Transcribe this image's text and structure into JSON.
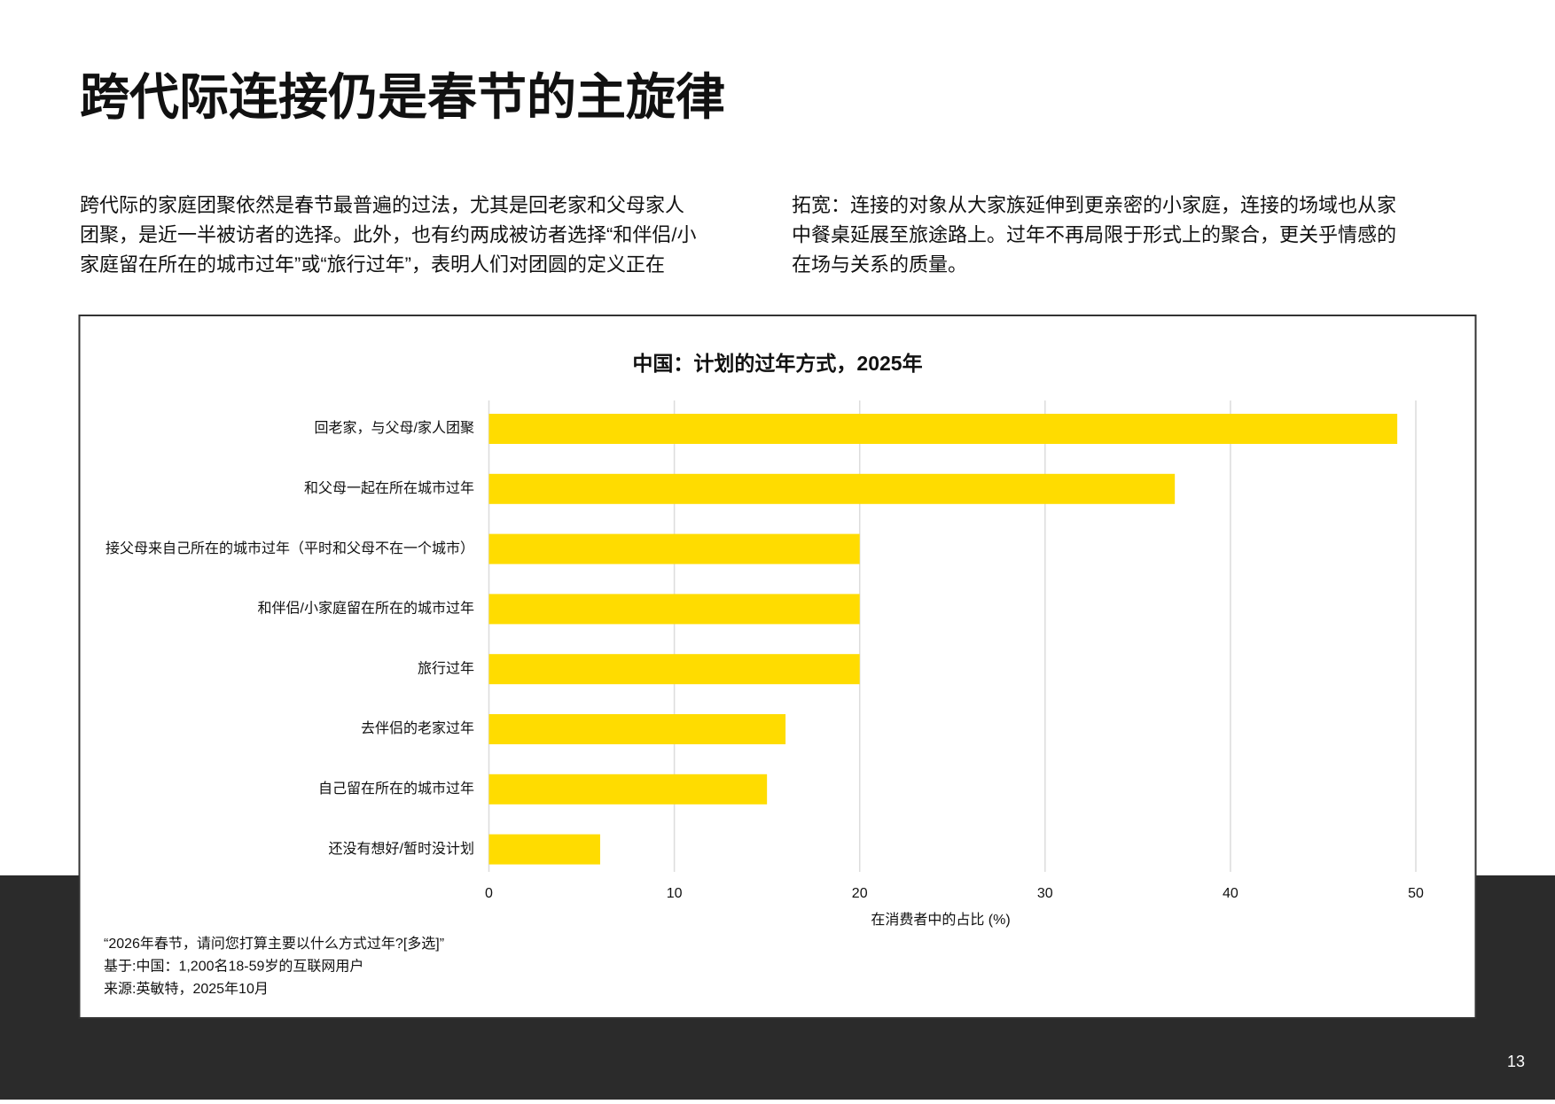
{
  "page": {
    "title": "跨代际连接仍是春节的主旋律",
    "number": "13",
    "body_left": [
      "跨代际的家庭团聚依然是春节最普遍的过法，尤其是回老家和父母家人",
      "团聚，是近一半被访者的选择。此外，也有约两成被访者选择“和伴侣/小",
      "家庭留在所在的城市过年”或“旅行过年”，表明人们对团圆的定义正在"
    ],
    "body_right": [
      "拓宽：连接的对象从大家族延伸到更亲密的小家庭，连接的场域也从家",
      "中餐桌延展至旅途路上。过年不再局限于形式上的聚合，更关乎情感的",
      "在场与关系的质量。"
    ]
  },
  "chart_data": {
    "type": "bar",
    "orientation": "horizontal",
    "title": "中国：计划的过年方式，2025年",
    "categories": [
      "回老家，与父母/家人团聚",
      "和父母一起在所在城市过年",
      "接父母来自己所在的城市过年（平时和父母不在一个城市）",
      "和伴侣/小家庭留在所在的城市过年",
      "旅行过年",
      "去伴侣的老家过年",
      "自己留在所在的城市过年",
      "还没有想好/暂时没计划"
    ],
    "values": [
      49,
      37,
      20,
      20,
      20,
      16,
      15,
      6
    ],
    "color": "#ffdc00",
    "xlim": [
      0,
      50
    ],
    "xticks": [
      0,
      10,
      20,
      30,
      40,
      50
    ],
    "x_label": "在消费者中的占比 (%)",
    "grid": true,
    "notes": [
      "“2026年春节，请问您打算主要以什么方式过年?[多选]”",
      "基于:中国：1,200名18-59岁的互联网用户",
      "来源:英敏特，2025年10月"
    ]
  }
}
